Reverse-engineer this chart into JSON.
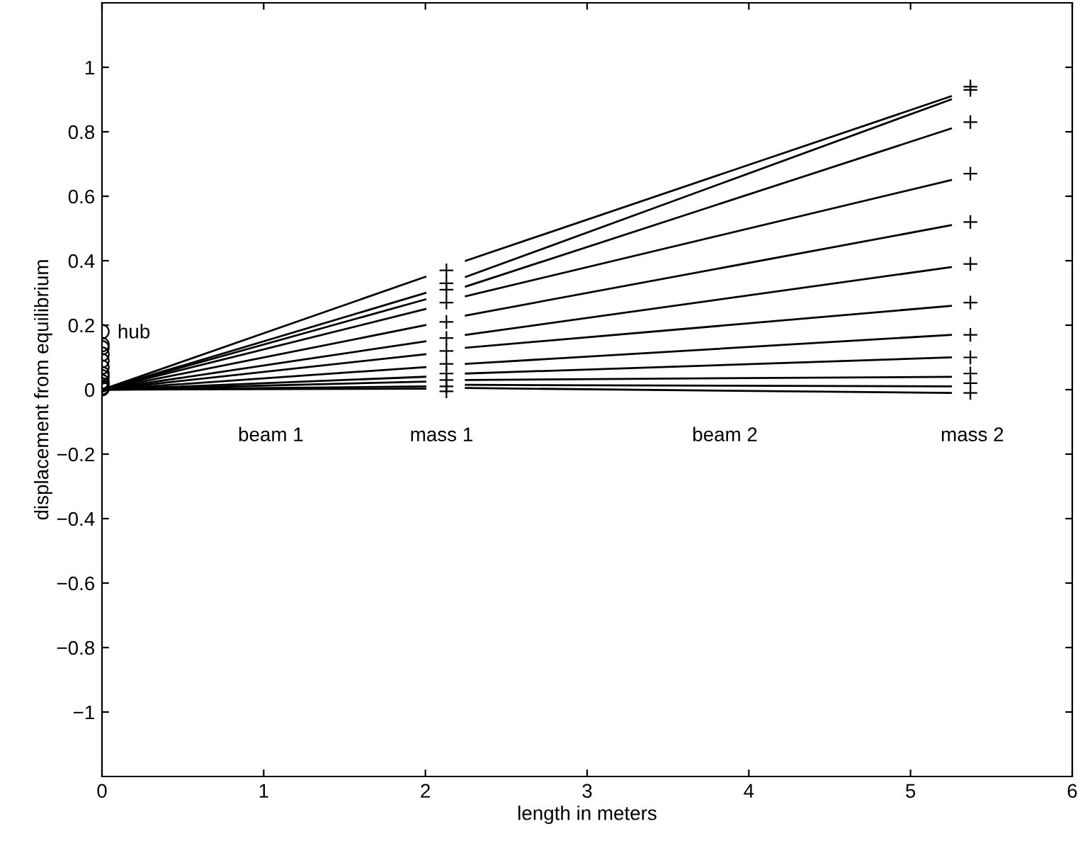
{
  "chart_data": {
    "type": "line",
    "xlabel": "length in meters",
    "ylabel": "displacement from equilibrium",
    "xlim": [
      0,
      6
    ],
    "ylim": [
      -1.2,
      1.2
    ],
    "xticks": [
      0,
      1,
      2,
      3,
      4,
      5,
      6
    ],
    "yticks": [
      {
        "value": -1,
        "label": "−1"
      },
      {
        "value": -0.8,
        "label": "−0.8"
      },
      {
        "value": -0.6,
        "label": "−0.6"
      },
      {
        "value": -0.4,
        "label": "−0.4"
      },
      {
        "value": -0.2,
        "label": "−0.2"
      },
      0,
      0.2,
      0.4,
      0.6,
      0.8,
      1
    ],
    "grid": false,
    "legend": false,
    "line_style": "solid",
    "marker": "none",
    "series": [
      {
        "color": "#000000",
        "x": [
          0,
          2.0
        ],
        "values": [
          0,
          0.35
        ]
      },
      {
        "color": "#000000",
        "x": [
          0,
          2.0
        ],
        "values": [
          0,
          0.3
        ]
      },
      {
        "color": "#000000",
        "x": [
          0,
          2.0
        ],
        "values": [
          0,
          0.28
        ]
      },
      {
        "color": "#000000",
        "x": [
          0,
          2.0
        ],
        "values": [
          0,
          0.25
        ]
      },
      {
        "color": "#000000",
        "x": [
          0,
          2.0
        ],
        "values": [
          0,
          0.2
        ]
      },
      {
        "color": "#000000",
        "x": [
          0,
          2.0
        ],
        "values": [
          0,
          0.15
        ]
      },
      {
        "color": "#000000",
        "x": [
          0,
          2.0
        ],
        "values": [
          0,
          0.11
        ]
      },
      {
        "color": "#000000",
        "x": [
          0,
          2.0
        ],
        "values": [
          0,
          0.07
        ]
      },
      {
        "color": "#000000",
        "x": [
          0,
          2.0
        ],
        "values": [
          0,
          0.04
        ]
      },
      {
        "color": "#000000",
        "x": [
          0,
          2.0
        ],
        "values": [
          0,
          0.025
        ]
      },
      {
        "color": "#000000",
        "x": [
          0,
          2.0
        ],
        "values": [
          0,
          0.01
        ]
      },
      {
        "color": "#000000",
        "x": [
          0,
          2.0
        ],
        "values": [
          0,
          0.003
        ]
      },
      {
        "color": "#000000",
        "x": [
          2.25,
          5.25
        ],
        "values": [
          0.4,
          0.91
        ]
      },
      {
        "color": "#000000",
        "x": [
          2.25,
          5.25
        ],
        "values": [
          0.35,
          0.9
        ]
      },
      {
        "color": "#000000",
        "x": [
          2.25,
          5.25
        ],
        "values": [
          0.32,
          0.81
        ]
      },
      {
        "color": "#000000",
        "x": [
          2.25,
          5.25
        ],
        "values": [
          0.29,
          0.65
        ]
      },
      {
        "color": "#000000",
        "x": [
          2.25,
          5.25
        ],
        "values": [
          0.23,
          0.51
        ]
      },
      {
        "color": "#000000",
        "x": [
          2.25,
          5.25
        ],
        "values": [
          0.17,
          0.38
        ]
      },
      {
        "color": "#000000",
        "x": [
          2.25,
          5.25
        ],
        "values": [
          0.13,
          0.26
        ]
      },
      {
        "color": "#000000",
        "x": [
          2.25,
          5.25
        ],
        "values": [
          0.08,
          0.17
        ]
      },
      {
        "color": "#000000",
        "x": [
          2.25,
          5.25
        ],
        "values": [
          0.05,
          0.1
        ]
      },
      {
        "color": "#000000",
        "x": [
          2.25,
          5.25
        ],
        "values": [
          0.03,
          0.04
        ]
      },
      {
        "color": "#000000",
        "x": [
          2.25,
          5.25
        ],
        "values": [
          0.015,
          0.01
        ]
      },
      {
        "color": "#000000",
        "x": [
          2.25,
          5.25
        ],
        "values": [
          0.005,
          -0.01
        ]
      },
      {
        "type": "scatter",
        "marker": "circle",
        "color": "#000000",
        "x": [
          0,
          0,
          0,
          0,
          0,
          0,
          0,
          0,
          0,
          0,
          0,
          0
        ],
        "values": [
          0.18,
          0.14,
          0.13,
          0.11,
          0.09,
          0.07,
          0.05,
          0.04,
          0.025,
          0.015,
          0.007,
          0.003
        ]
      },
      {
        "type": "scatter",
        "marker": "cross",
        "color": "#000000",
        "x": [
          2.13,
          2.13,
          2.13,
          2.13,
          2.13,
          2.13,
          2.13,
          2.13,
          2.13,
          2.13,
          2.13,
          2.13
        ],
        "values": [
          0.37,
          0.33,
          0.31,
          0.27,
          0.21,
          0.16,
          0.12,
          0.08,
          0.05,
          0.03,
          0.01,
          -0.005
        ]
      },
      {
        "type": "scatter",
        "marker": "cross",
        "color": "#000000",
        "x": [
          5.37,
          5.37,
          5.37,
          5.37,
          5.37,
          5.37,
          5.37,
          5.37,
          5.37,
          5.37,
          5.37,
          5.37
        ],
        "values": [
          0.94,
          0.93,
          0.83,
          0.67,
          0.52,
          0.39,
          0.27,
          0.17,
          0.1,
          0.05,
          0.02,
          -0.01
        ]
      }
    ],
    "annotations": [
      "hub",
      "beam 1",
      "mass 1",
      "beam 2",
      "mass 2"
    ]
  }
}
